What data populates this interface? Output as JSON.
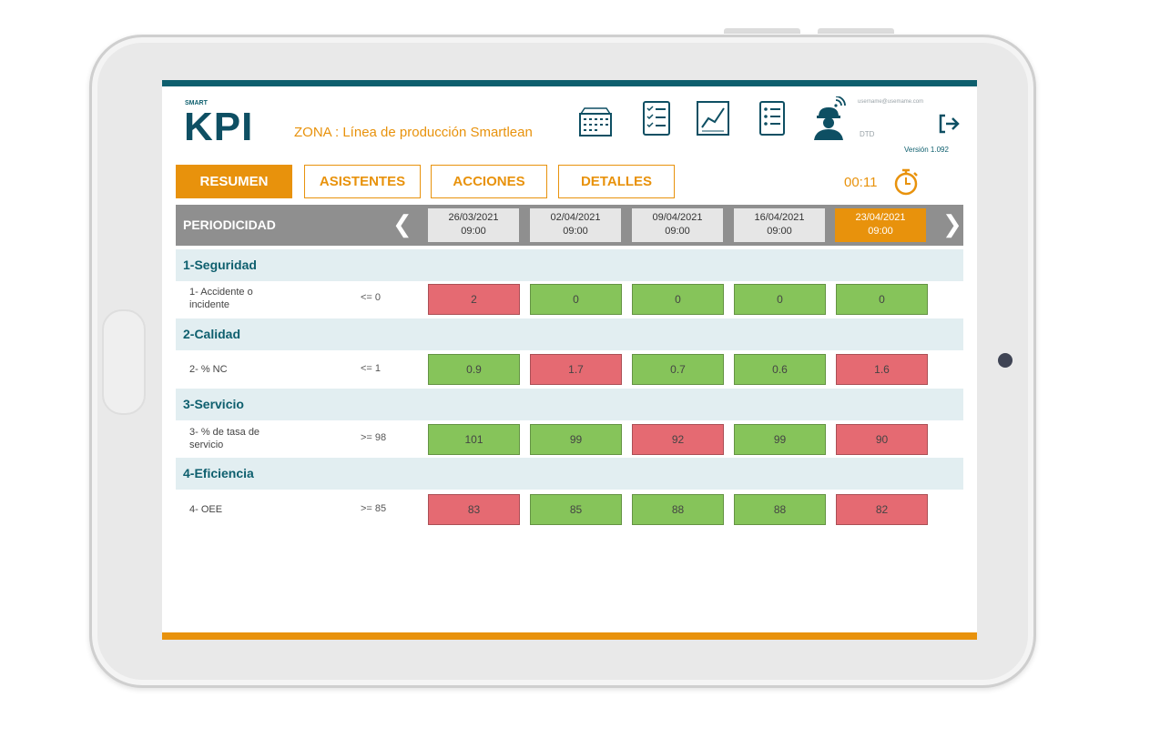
{
  "header": {
    "logo_small": "SMART",
    "logo": "KPI",
    "zona": "ZONA : Línea de producción Smartlean",
    "user_email": "username@usemame.com",
    "user_code": "DTD",
    "version": "Versión 1.092"
  },
  "icons": {
    "calendar": "calendar-icon",
    "checklist": "checklist-icon",
    "chart": "line-chart-icon",
    "list": "list-icon",
    "user": "worker-user-icon",
    "logout": "logout-icon",
    "timer": "stopwatch-icon"
  },
  "tabs": [
    {
      "label": "RESUMEN",
      "active": true
    },
    {
      "label": "ASISTENTES",
      "active": false
    },
    {
      "label": "ACCIONES",
      "active": false
    },
    {
      "label": "DETALLES",
      "active": false
    }
  ],
  "timer": "00:11",
  "periodicity": {
    "label": "PERIODICIDAD",
    "dates": [
      {
        "date": "26/03/2021",
        "time": "09:00"
      },
      {
        "date": "02/04/2021",
        "time": "09:00"
      },
      {
        "date": "09/04/2021",
        "time": "09:00"
      },
      {
        "date": "16/04/2021",
        "time": "09:00"
      },
      {
        "date": "23/04/2021",
        "time": "09:00",
        "current": true
      }
    ]
  },
  "categories": [
    {
      "title": "1-Seguridad",
      "kpi": {
        "name": "1- Accidente o incidente",
        "target": "<= 0",
        "values": [
          {
            "v": "2",
            "ok": false
          },
          {
            "v": "0",
            "ok": true
          },
          {
            "v": "0",
            "ok": true
          },
          {
            "v": "0",
            "ok": true
          },
          {
            "v": "0",
            "ok": true
          }
        ]
      }
    },
    {
      "title": "2-Calidad",
      "kpi": {
        "name": "2- % NC",
        "target": "<= 1",
        "values": [
          {
            "v": "0.9",
            "ok": true
          },
          {
            "v": "1.7",
            "ok": false
          },
          {
            "v": "0.7",
            "ok": true
          },
          {
            "v": "0.6",
            "ok": true
          },
          {
            "v": "1.6",
            "ok": false
          }
        ]
      }
    },
    {
      "title": "3-Servicio",
      "kpi": {
        "name": "3- % de tasa de servicio",
        "target": ">= 98",
        "values": [
          {
            "v": "101",
            "ok": true
          },
          {
            "v": "99",
            "ok": true
          },
          {
            "v": "92",
            "ok": false
          },
          {
            "v": "99",
            "ok": true
          },
          {
            "v": "90",
            "ok": false
          }
        ]
      }
    },
    {
      "title": "4-Eficiencia",
      "kpi": {
        "name": "4- OEE",
        "target": ">= 85",
        "values": [
          {
            "v": "83",
            "ok": false
          },
          {
            "v": "85",
            "ok": true
          },
          {
            "v": "88",
            "ok": true
          },
          {
            "v": "88",
            "ok": true
          },
          {
            "v": "82",
            "ok": false
          }
        ]
      }
    }
  ],
  "colors": {
    "brand": "#0e5f6e",
    "accent": "#e8920c",
    "ok": "#86c45a",
    "bad": "#e56a72"
  }
}
